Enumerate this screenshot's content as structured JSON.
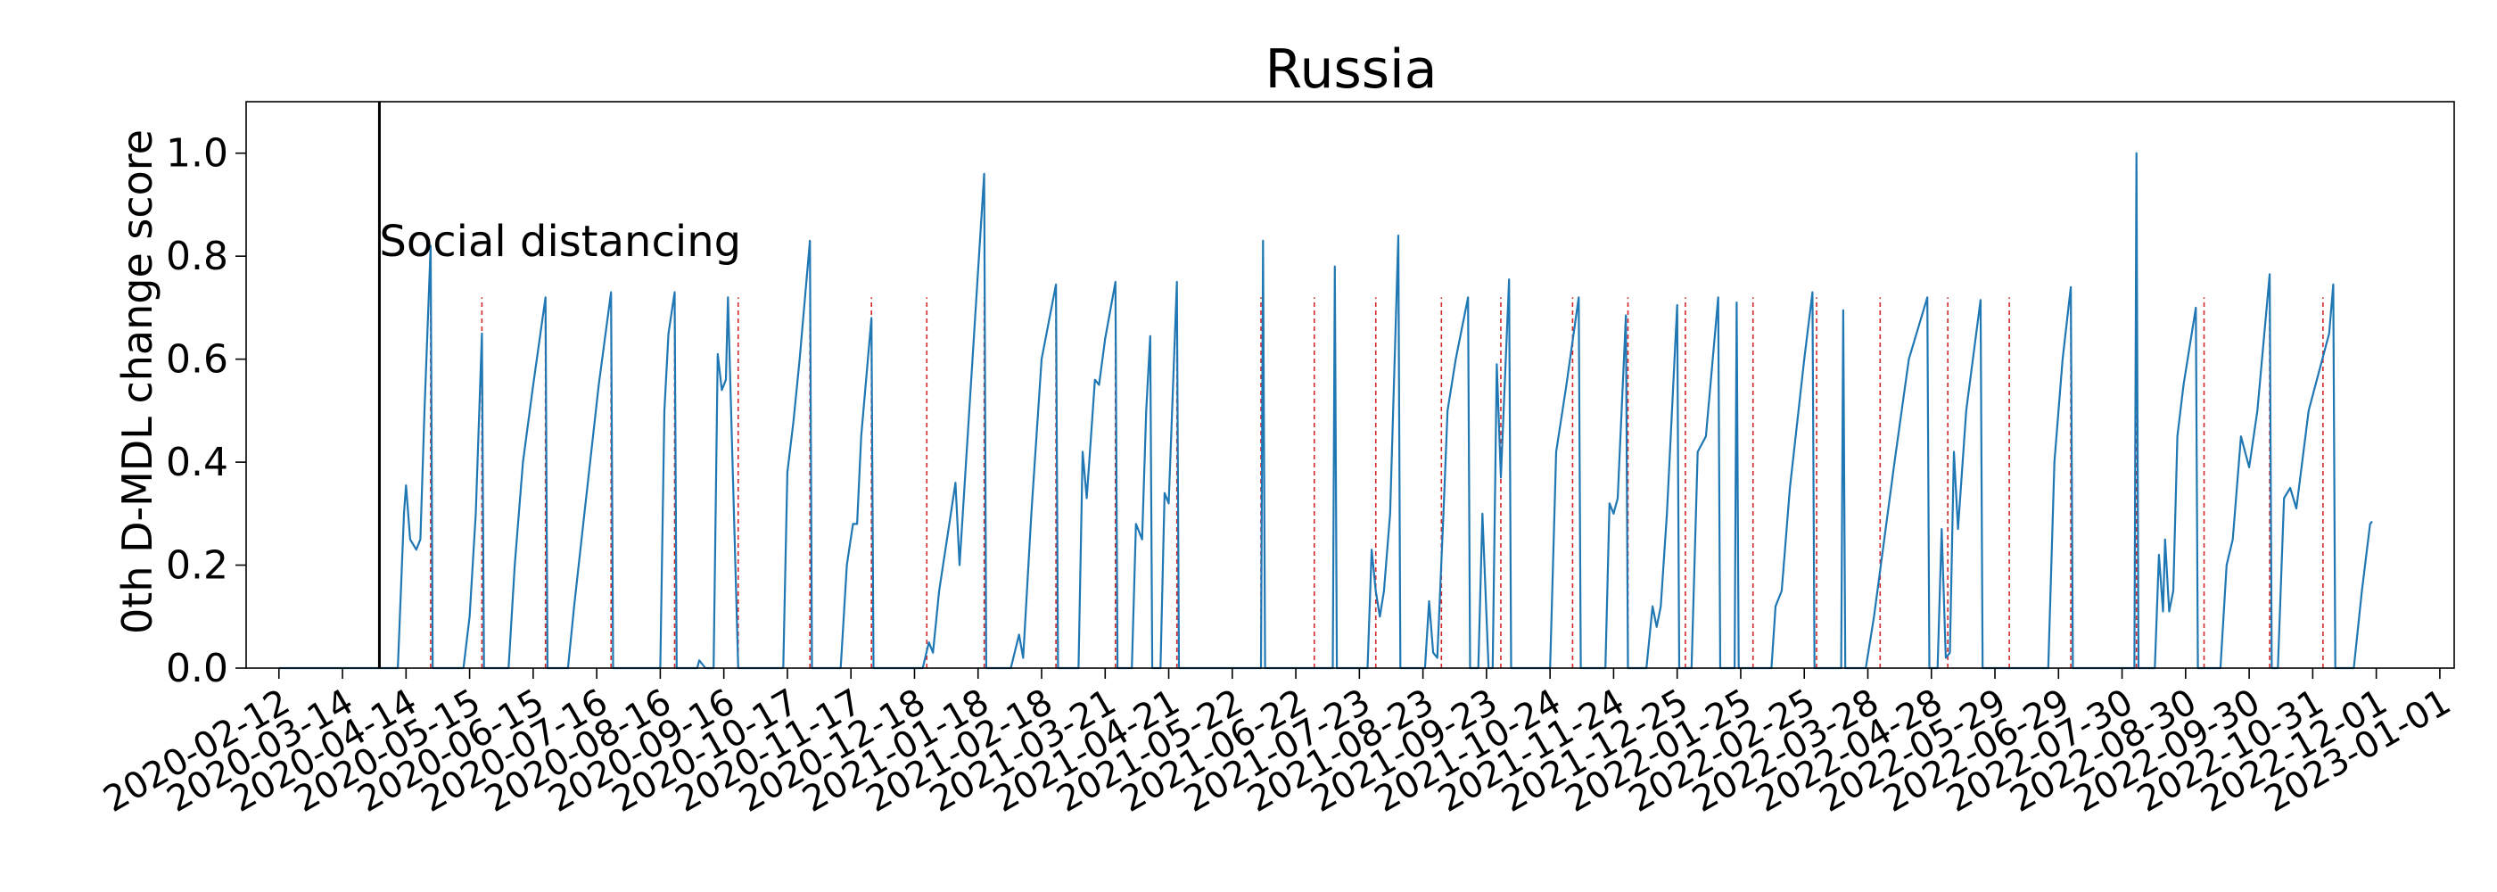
{
  "colors": {
    "series": "#1f77b4",
    "alarm": "#d62728",
    "event_line": "#000000"
  },
  "chart_data": {
    "type": "line",
    "title": "Russia",
    "xlabel": "",
    "ylabel": "0th D-MDL change score",
    "x_axis": "date",
    "xlim": [
      "2020-01-27",
      "2023-01-08"
    ],
    "ylim": [
      0,
      1.1
    ],
    "grid": false,
    "legend": "none",
    "y_ticks": [
      "0.0",
      "0.2",
      "0.4",
      "0.6",
      "0.8",
      "1.0"
    ],
    "x_tick_labels": [
      "2020-02-12",
      "2020-03-14",
      "2020-04-14",
      "2020-05-15",
      "2020-06-15",
      "2020-07-16",
      "2020-08-16",
      "2020-09-16",
      "2020-10-17",
      "2020-11-17",
      "2020-12-18",
      "2021-01-18",
      "2021-02-18",
      "2021-03-21",
      "2021-04-21",
      "2021-05-22",
      "2021-06-22",
      "2021-07-23",
      "2021-08-23",
      "2021-09-23",
      "2021-10-24",
      "2021-11-24",
      "2021-12-25",
      "2022-01-25",
      "2022-02-25",
      "2022-03-28",
      "2022-04-28",
      "2022-05-29",
      "2022-06-29",
      "2022-07-30",
      "2022-08-30",
      "2022-09-30",
      "2022-10-31",
      "2022-12-01",
      "2023-01-01"
    ],
    "annotations": [
      {
        "date": "2020-04-01",
        "label": "Social distancing"
      }
    ],
    "alarms": [
      "2020-04-26",
      "2020-05-21",
      "2020-06-21",
      "2020-07-23",
      "2020-08-23",
      "2020-09-23",
      "2020-10-28",
      "2020-11-27",
      "2020-12-24",
      "2021-01-21",
      "2021-02-25",
      "2021-03-26",
      "2021-04-25",
      "2021-06-05",
      "2021-07-01",
      "2021-07-31",
      "2021-09-01",
      "2021-09-30",
      "2021-11-04",
      "2021-12-01",
      "2021-12-29",
      "2022-01-31",
      "2022-03-03",
      "2022-04-03",
      "2022-05-06",
      "2022-06-05",
      "2022-07-05",
      "2022-08-06",
      "2022-09-08",
      "2022-10-10",
      "2022-11-05"
    ],
    "series": [
      {
        "points": [
          [
            "2020-02-12",
            0.0
          ],
          [
            "2020-04-01",
            0.0
          ],
          [
            "2020-04-10",
            0.0
          ],
          [
            "2020-04-13",
            0.3
          ],
          [
            "2020-04-14",
            0.355
          ],
          [
            "2020-04-16",
            0.25
          ],
          [
            "2020-04-19",
            0.23
          ],
          [
            "2020-04-21",
            0.25
          ],
          [
            "2020-04-23",
            0.5
          ],
          [
            "2020-04-26",
            0.82
          ],
          [
            "2020-04-27",
            0.0
          ],
          [
            "2020-05-12",
            0.0
          ],
          [
            "2020-05-15",
            0.1
          ],
          [
            "2020-05-18",
            0.3
          ],
          [
            "2020-05-21",
            0.65
          ],
          [
            "2020-05-22",
            0.0
          ],
          [
            "2020-06-03",
            0.0
          ],
          [
            "2020-06-06",
            0.2
          ],
          [
            "2020-06-10",
            0.4
          ],
          [
            "2020-06-15",
            0.55
          ],
          [
            "2020-06-21",
            0.72
          ],
          [
            "2020-06-22",
            0.0
          ],
          [
            "2020-07-02",
            0.0
          ],
          [
            "2020-07-05",
            0.12
          ],
          [
            "2020-07-10",
            0.3
          ],
          [
            "2020-07-17",
            0.55
          ],
          [
            "2020-07-23",
            0.73
          ],
          [
            "2020-07-24",
            0.0
          ],
          [
            "2020-08-16",
            0.0
          ],
          [
            "2020-08-18",
            0.5
          ],
          [
            "2020-08-20",
            0.65
          ],
          [
            "2020-08-23",
            0.73
          ],
          [
            "2020-08-24",
            0.0
          ],
          [
            "2020-09-03",
            0.0
          ],
          [
            "2020-09-04",
            0.015
          ],
          [
            "2020-09-07",
            0.0
          ],
          [
            "2020-09-11",
            0.0
          ],
          [
            "2020-09-13",
            0.61
          ],
          [
            "2020-09-15",
            0.54
          ],
          [
            "2020-09-17",
            0.56
          ],
          [
            "2020-09-18",
            0.72
          ],
          [
            "2020-09-23",
            0.0
          ],
          [
            "2020-10-15",
            0.0
          ],
          [
            "2020-10-17",
            0.38
          ],
          [
            "2020-10-20",
            0.48
          ],
          [
            "2020-10-23",
            0.6
          ],
          [
            "2020-10-28",
            0.83
          ],
          [
            "2020-10-29",
            0.0
          ],
          [
            "2020-11-12",
            0.0
          ],
          [
            "2020-11-15",
            0.2
          ],
          [
            "2020-11-18",
            0.28
          ],
          [
            "2020-11-20",
            0.28
          ],
          [
            "2020-11-22",
            0.45
          ],
          [
            "2020-11-27",
            0.68
          ],
          [
            "2020-11-28",
            0.0
          ],
          [
            "2020-12-22",
            0.0
          ],
          [
            "2020-12-25",
            0.05
          ],
          [
            "2020-12-27",
            0.03
          ],
          [
            "2020-12-30",
            0.15
          ],
          [
            "2021-01-04",
            0.28
          ],
          [
            "2021-01-07",
            0.36
          ],
          [
            "2021-01-09",
            0.2
          ],
          [
            "2021-01-21",
            0.96
          ],
          [
            "2021-01-22",
            0.0
          ],
          [
            "2021-02-03",
            0.0
          ],
          [
            "2021-02-07",
            0.065
          ],
          [
            "2021-02-09",
            0.02
          ],
          [
            "2021-02-13",
            0.3
          ],
          [
            "2021-02-18",
            0.6
          ],
          [
            "2021-02-25",
            0.745
          ],
          [
            "2021-02-26",
            0.0
          ],
          [
            "2021-03-08",
            0.0
          ],
          [
            "2021-03-10",
            0.42
          ],
          [
            "2021-03-12",
            0.33
          ],
          [
            "2021-03-16",
            0.56
          ],
          [
            "2021-03-18",
            0.55
          ],
          [
            "2021-03-21",
            0.64
          ],
          [
            "2021-03-26",
            0.75
          ],
          [
            "2021-03-27",
            0.0
          ],
          [
            "2021-04-03",
            0.0
          ],
          [
            "2021-04-05",
            0.28
          ],
          [
            "2021-04-08",
            0.25
          ],
          [
            "2021-04-10",
            0.5
          ],
          [
            "2021-04-12",
            0.645
          ],
          [
            "2021-04-13",
            0.0
          ],
          [
            "2021-04-17",
            0.0
          ],
          [
            "2021-04-19",
            0.34
          ],
          [
            "2021-04-21",
            0.32
          ],
          [
            "2021-04-25",
            0.75
          ],
          [
            "2021-04-26",
            0.0
          ],
          [
            "2021-06-05",
            0.0
          ],
          [
            "2021-06-06",
            0.83
          ],
          [
            "2021-06-07",
            0.0
          ],
          [
            "2021-07-10",
            0.0
          ],
          [
            "2021-07-11",
            0.78
          ],
          [
            "2021-07-12",
            0.0
          ],
          [
            "2021-07-27",
            0.0
          ],
          [
            "2021-07-29",
            0.23
          ],
          [
            "2021-07-31",
            0.15
          ],
          [
            "2021-08-02",
            0.1
          ],
          [
            "2021-08-04",
            0.15
          ],
          [
            "2021-08-07",
            0.3
          ],
          [
            "2021-08-11",
            0.84
          ],
          [
            "2021-08-12",
            0.0
          ],
          [
            "2021-08-24",
            0.0
          ],
          [
            "2021-08-26",
            0.13
          ],
          [
            "2021-08-28",
            0.03
          ],
          [
            "2021-08-30",
            0.02
          ],
          [
            "2021-09-02",
            0.3
          ],
          [
            "2021-09-04",
            0.5
          ],
          [
            "2021-09-08",
            0.6
          ],
          [
            "2021-09-14",
            0.72
          ],
          [
            "2021-09-15",
            0.0
          ],
          [
            "2021-09-19",
            0.0
          ],
          [
            "2021-09-21",
            0.3
          ],
          [
            "2021-09-24",
            0.0
          ],
          [
            "2021-09-26",
            0.0
          ],
          [
            "2021-09-28",
            0.59
          ],
          [
            "2021-09-30",
            0.37
          ],
          [
            "2021-10-04",
            0.755
          ],
          [
            "2021-10-05",
            0.0
          ],
          [
            "2021-10-24",
            0.0
          ],
          [
            "2021-10-27",
            0.42
          ],
          [
            "2021-11-01",
            0.55
          ],
          [
            "2021-11-07",
            0.72
          ],
          [
            "2021-11-08",
            0.0
          ],
          [
            "2021-11-20",
            0.0
          ],
          [
            "2021-11-22",
            0.32
          ],
          [
            "2021-11-24",
            0.3
          ],
          [
            "2021-11-26",
            0.33
          ],
          [
            "2021-11-30",
            0.685
          ],
          [
            "2021-12-01",
            0.0
          ],
          [
            "2021-12-10",
            0.0
          ],
          [
            "2021-12-13",
            0.12
          ],
          [
            "2021-12-15",
            0.08
          ],
          [
            "2021-12-17",
            0.12
          ],
          [
            "2021-12-20",
            0.3
          ],
          [
            "2021-12-25",
            0.705
          ],
          [
            "2021-12-26",
            0.0
          ],
          [
            "2022-01-01",
            0.0
          ],
          [
            "2022-01-04",
            0.42
          ],
          [
            "2022-01-08",
            0.45
          ],
          [
            "2022-01-14",
            0.72
          ],
          [
            "2022-01-15",
            0.0
          ],
          [
            "2022-01-22",
            0.0
          ],
          [
            "2022-01-23",
            0.71
          ],
          [
            "2022-01-24",
            0.0
          ],
          [
            "2022-02-09",
            0.0
          ],
          [
            "2022-02-11",
            0.12
          ],
          [
            "2022-02-14",
            0.15
          ],
          [
            "2022-02-18",
            0.35
          ],
          [
            "2022-02-25",
            0.6
          ],
          [
            "2022-03-01",
            0.73
          ],
          [
            "2022-03-02",
            0.0
          ],
          [
            "2022-03-15",
            0.0
          ],
          [
            "2022-03-16",
            0.695
          ],
          [
            "2022-03-17",
            0.0
          ],
          [
            "2022-03-27",
            0.0
          ],
          [
            "2022-03-31",
            0.1
          ],
          [
            "2022-04-05",
            0.25
          ],
          [
            "2022-04-10",
            0.4
          ],
          [
            "2022-04-17",
            0.6
          ],
          [
            "2022-04-26",
            0.72
          ],
          [
            "2022-04-27",
            0.0
          ],
          [
            "2022-05-01",
            0.0
          ],
          [
            "2022-05-03",
            0.27
          ],
          [
            "2022-05-05",
            0.02
          ],
          [
            "2022-05-07",
            0.03
          ],
          [
            "2022-05-09",
            0.42
          ],
          [
            "2022-05-11",
            0.27
          ],
          [
            "2022-05-15",
            0.5
          ],
          [
            "2022-05-22",
            0.715
          ],
          [
            "2022-05-23",
            0.0
          ],
          [
            "2022-06-24",
            0.0
          ],
          [
            "2022-06-27",
            0.4
          ],
          [
            "2022-07-01",
            0.6
          ],
          [
            "2022-07-05",
            0.74
          ],
          [
            "2022-07-06",
            0.0
          ],
          [
            "2022-08-05",
            0.0
          ],
          [
            "2022-08-06",
            1.0
          ],
          [
            "2022-08-07",
            0.0
          ],
          [
            "2022-08-15",
            0.0
          ],
          [
            "2022-08-17",
            0.22
          ],
          [
            "2022-08-19",
            0.11
          ],
          [
            "2022-08-20",
            0.25
          ],
          [
            "2022-08-22",
            0.11
          ],
          [
            "2022-08-24",
            0.15
          ],
          [
            "2022-08-26",
            0.45
          ],
          [
            "2022-08-29",
            0.55
          ],
          [
            "2022-09-04",
            0.7
          ],
          [
            "2022-09-05",
            0.0
          ],
          [
            "2022-09-16",
            0.0
          ],
          [
            "2022-09-19",
            0.2
          ],
          [
            "2022-09-22",
            0.25
          ],
          [
            "2022-09-26",
            0.45
          ],
          [
            "2022-09-30",
            0.39
          ],
          [
            "2022-10-04",
            0.5
          ],
          [
            "2022-10-10",
            0.765
          ],
          [
            "2022-10-11",
            0.0
          ],
          [
            "2022-10-14",
            0.0
          ],
          [
            "2022-10-17",
            0.33
          ],
          [
            "2022-10-20",
            0.35
          ],
          [
            "2022-10-23",
            0.31
          ],
          [
            "2022-10-29",
            0.5
          ],
          [
            "2022-11-08",
            0.65
          ],
          [
            "2022-11-10",
            0.745
          ],
          [
            "2022-11-11",
            0.0
          ],
          [
            "2022-11-20",
            0.0
          ],
          [
            "2022-11-24",
            0.15
          ],
          [
            "2022-11-28",
            0.28
          ],
          [
            "2022-11-29",
            0.285
          ]
        ]
      }
    ]
  }
}
